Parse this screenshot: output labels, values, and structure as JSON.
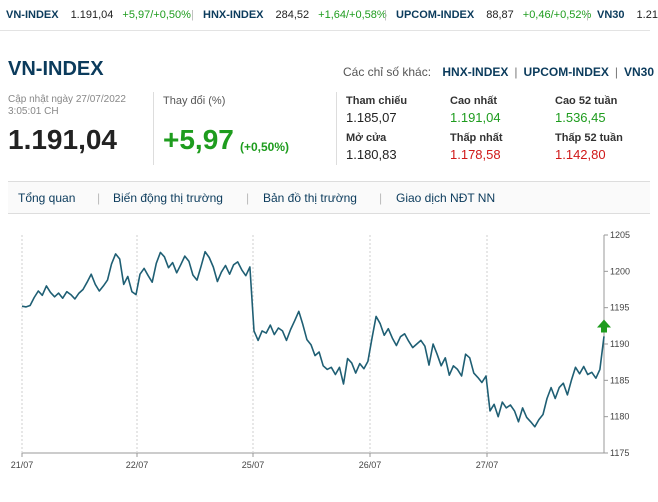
{
  "ticker": [
    {
      "name": "VN-INDEX",
      "value": "1.191,04",
      "change": "+5,97/+0,50%"
    },
    {
      "name": "HNX-INDEX",
      "value": "284,52",
      "change": "+1,64/+0,58%"
    },
    {
      "name": "UPCOM-INDEX",
      "value": "88,87",
      "change": "+0,46/+0,52%"
    },
    {
      "name": "VN30",
      "value": "1.21",
      "change": ""
    }
  ],
  "header": {
    "title": "VN-INDEX",
    "other_label": "Các chỉ số khác:",
    "other_links": [
      "HNX-INDEX",
      "UPCOM-INDEX",
      "VN30"
    ]
  },
  "summary": {
    "updated": "Cập nhật ngày 27/07/2022 3:05:01 CH",
    "price": "1.191,04",
    "change_label": "Thay đổi (%)",
    "change": "+5,97",
    "change_pct": "(+0,50%)"
  },
  "stats": {
    "ref_label": "Tham chiếu",
    "ref_value": "1.185,07",
    "open_label": "Mở cửa",
    "open_value": "1.180,83",
    "high_label": "Cao nhất",
    "high_value": "1.191,04",
    "low_label": "Thấp nhất",
    "low_value": "1.178,58",
    "high52_label": "Cao 52 tuần",
    "high52_value": "1.536,45",
    "low52_label": "Thấp 52 tuần",
    "low52_value": "1.142,80"
  },
  "tabs": [
    "Tổng quan",
    "Biến động thị trường",
    "Bản đồ thị trường",
    "Giao dịch NĐT NN"
  ],
  "colors": {
    "up": "#1e9c1e",
    "down": "#d01818",
    "brand": "#0b3b5c",
    "line": "#1f5f74"
  },
  "chart_data": {
    "type": "line",
    "x_labels": [
      "21/07",
      "22/07",
      "25/07",
      "26/07",
      "27/07"
    ],
    "y_ticks": [
      1175,
      1180,
      1185,
      1190,
      1195,
      1200,
      1205
    ],
    "ylim": [
      1175,
      1205
    ],
    "current_marker": "up-arrow-icon",
    "series": [
      {
        "values": [
          1195.2,
          1195.1,
          1195.3,
          1196.4,
          1197.3,
          1196.7,
          1198.0,
          1197.1,
          1196.5,
          1197.0,
          1196.3,
          1197.2,
          1196.8,
          1196.2,
          1197.0,
          1197.5,
          1198.5,
          1199.6,
          1198.2,
          1197.3,
          1198.0,
          1198.8,
          1201.0,
          1202.4,
          1201.7,
          1198.2,
          1199.3,
          1197.2,
          1196.8,
          1199.6,
          1200.4,
          1199.4,
          1198.5,
          1201.1,
          1202.6,
          1202.0,
          1200.5,
          1201.2,
          1199.8,
          1200.9,
          1202.1,
          1201.4,
          1199.5,
          1198.8,
          1200.7,
          1202.7,
          1201.9,
          1200.6,
          1198.6,
          1199.9,
          1200.8,
          1199.6,
          1200.9,
          1201.3,
          1200.2,
          1199.4,
          1200.6,
          1191.8,
          1190.5,
          1191.8,
          1191.5,
          1192.6,
          1191.3,
          1192.2,
          1191.8,
          1190.5,
          1192.0,
          1193.2,
          1194.5,
          1192.7,
          1190.6,
          1189.9,
          1188.4,
          1188.9,
          1187.0,
          1186.5,
          1186.8,
          1185.8,
          1186.8,
          1184.5,
          1188.0,
          1187.4,
          1186.0,
          1187.3,
          1186.6,
          1187.6,
          1190.8,
          1193.8,
          1192.8,
          1191.2,
          1192.1,
          1190.8,
          1189.8,
          1191.0,
          1191.4,
          1190.4,
          1189.5,
          1190.0,
          1190.5,
          1189.7,
          1187.1,
          1190.0,
          1188.6,
          1187.0,
          1188.1,
          1185.7,
          1187.0,
          1186.5,
          1185.6,
          1188.6,
          1188.1,
          1186.0,
          1185.4,
          1184.7,
          1185.6,
          1180.8,
          1181.7,
          1180.0,
          1182.0,
          1181.2,
          1181.6,
          1180.8,
          1179.3,
          1181.2,
          1179.9,
          1179.3,
          1178.6,
          1179.6,
          1180.3,
          1182.5,
          1184.0,
          1182.5,
          1184.0,
          1184.6,
          1183.0,
          1185.0,
          1186.8,
          1185.9,
          1186.9,
          1185.8,
          1186.1,
          1185.3,
          1186.5,
          1191.04
        ]
      }
    ]
  }
}
